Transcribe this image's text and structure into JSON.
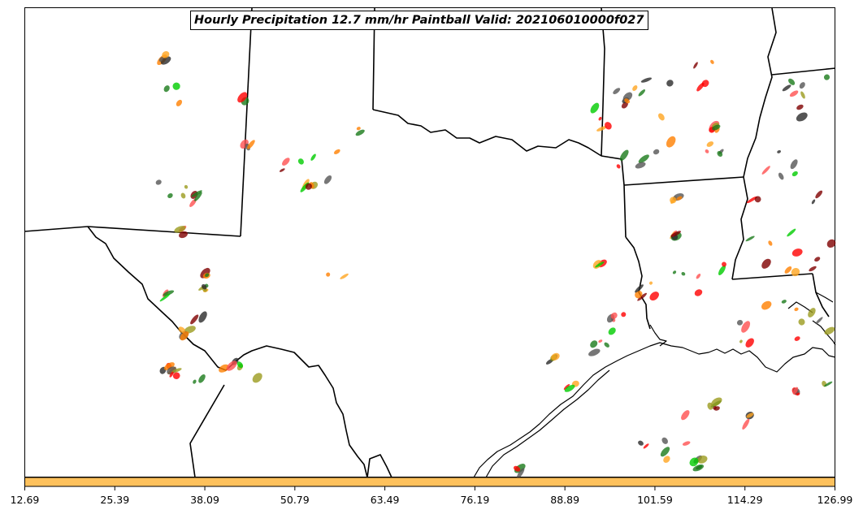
{
  "title": "Hourly Precipitation 12.7 mm/hr Paintball Valid: 202106010000f027",
  "colorbar": {
    "color": "#fec15c",
    "ticks": [
      "12.69",
      "25.39",
      "38.09",
      "50.79",
      "63.49",
      "76.19",
      "88.89",
      "101.59",
      "114.29",
      "126.99"
    ]
  },
  "member_colors": [
    "#ff0000",
    "#ff7f00",
    "#ffa520",
    "#00cc00",
    "#1a7a1a",
    "#7f0000",
    "#9b9b1e",
    "#2b2b2b",
    "#555555",
    "#ff5050"
  ]
}
